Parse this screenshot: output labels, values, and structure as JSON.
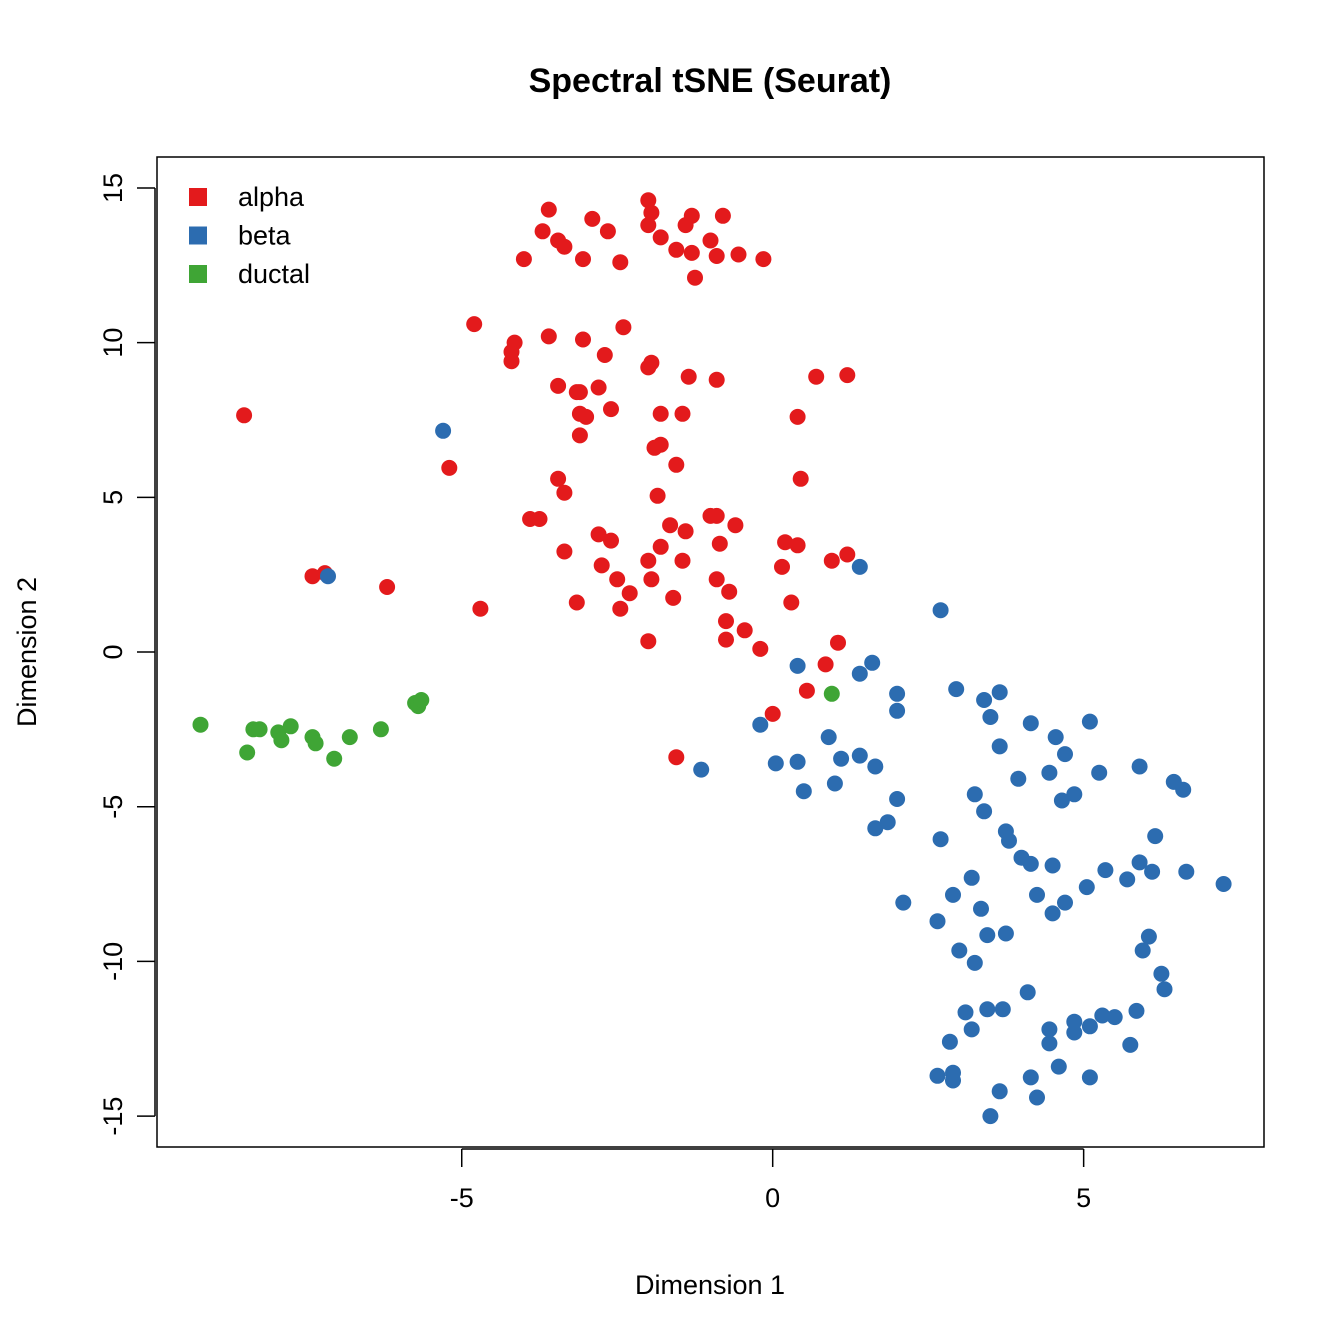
{
  "chart_data": {
    "type": "scatter",
    "title": "Spectral tSNE (Seurat)",
    "xlabel": "Dimension 1",
    "ylabel": "Dimension 2",
    "xlim": [
      -9.9,
      7.9
    ],
    "ylim": [
      -16.0,
      16.0
    ],
    "x_ticks": [
      -5,
      0,
      5
    ],
    "x_tick_labels": [
      "-5",
      "0",
      "5"
    ],
    "y_ticks": [
      -15,
      -10,
      -5,
      0,
      5,
      10,
      15
    ],
    "y_tick_labels": [
      "-15",
      "-10",
      "-5",
      "0",
      "5",
      "10",
      "15"
    ],
    "grid": false,
    "legend_position": "top-left",
    "series": [
      {
        "name": "alpha",
        "color": "#e31a1c",
        "points": [
          [
            -2.0,
            14.6
          ],
          [
            -1.95,
            14.2
          ],
          [
            -2.0,
            13.8
          ],
          [
            -1.3,
            14.1
          ],
          [
            -1.4,
            13.8
          ],
          [
            -0.8,
            14.1
          ],
          [
            -3.6,
            14.3
          ],
          [
            -2.9,
            14.0
          ],
          [
            -2.65,
            13.6
          ],
          [
            -3.7,
            13.6
          ],
          [
            -3.45,
            13.3
          ],
          [
            -3.35,
            13.1
          ],
          [
            -1.8,
            13.4
          ],
          [
            -1.55,
            13.0
          ],
          [
            -1.3,
            12.9
          ],
          [
            -1.0,
            13.3
          ],
          [
            -0.9,
            12.8
          ],
          [
            -0.55,
            12.85
          ],
          [
            -0.15,
            12.7
          ],
          [
            -1.25,
            12.1
          ],
          [
            -4.0,
            12.7
          ],
          [
            -3.05,
            12.7
          ],
          [
            -2.45,
            12.6
          ],
          [
            -4.8,
            10.6
          ],
          [
            -4.15,
            10.0
          ],
          [
            -4.2,
            9.7
          ],
          [
            -4.2,
            9.4
          ],
          [
            -3.6,
            10.2
          ],
          [
            -3.05,
            10.1
          ],
          [
            -2.4,
            10.5
          ],
          [
            -2.7,
            9.6
          ],
          [
            -2.0,
            9.2
          ],
          [
            -1.95,
            9.35
          ],
          [
            -1.35,
            8.9
          ],
          [
            -0.9,
            8.8
          ],
          [
            -3.45,
            8.6
          ],
          [
            -3.15,
            8.4
          ],
          [
            -3.1,
            8.4
          ],
          [
            -2.8,
            8.55
          ],
          [
            -2.6,
            7.85
          ],
          [
            -3.1,
            7.7
          ],
          [
            -3.0,
            7.6
          ],
          [
            -3.1,
            7.0
          ],
          [
            -1.8,
            7.7
          ],
          [
            -1.45,
            7.7
          ],
          [
            -1.8,
            6.7
          ],
          [
            -1.9,
            6.6
          ],
          [
            -1.55,
            6.05
          ],
          [
            0.7,
            8.9
          ],
          [
            1.2,
            8.95
          ],
          [
            0.4,
            7.6
          ],
          [
            0.45,
            5.6
          ],
          [
            -8.5,
            7.65
          ],
          [
            -5.2,
            5.95
          ],
          [
            -3.45,
            5.6
          ],
          [
            -3.35,
            5.15
          ],
          [
            -1.85,
            5.05
          ],
          [
            -3.9,
            4.3
          ],
          [
            -3.75,
            4.3
          ],
          [
            -1.65,
            4.1
          ],
          [
            -1.4,
            3.9
          ],
          [
            -1.0,
            4.4
          ],
          [
            -0.9,
            4.4
          ],
          [
            -0.6,
            4.1
          ],
          [
            -2.8,
            3.8
          ],
          [
            -2.6,
            3.6
          ],
          [
            -3.35,
            3.25
          ],
          [
            -1.8,
            3.4
          ],
          [
            -0.85,
            3.5
          ],
          [
            0.2,
            3.55
          ],
          [
            0.4,
            3.45
          ],
          [
            -2.0,
            2.95
          ],
          [
            -1.45,
            2.95
          ],
          [
            -2.75,
            2.8
          ],
          [
            -2.5,
            2.35
          ],
          [
            -1.95,
            2.35
          ],
          [
            -0.9,
            2.35
          ],
          [
            0.15,
            2.75
          ],
          [
            0.95,
            2.95
          ],
          [
            1.2,
            3.15
          ],
          [
            -2.3,
            1.9
          ],
          [
            -0.7,
            1.95
          ],
          [
            -3.15,
            1.6
          ],
          [
            -2.45,
            1.4
          ],
          [
            -1.6,
            1.75
          ],
          [
            0.3,
            1.6
          ],
          [
            -0.75,
            1.0
          ],
          [
            -0.45,
            0.7
          ],
          [
            -0.75,
            0.4
          ],
          [
            -0.2,
            0.1
          ],
          [
            -2.0,
            0.35
          ],
          [
            1.05,
            0.3
          ],
          [
            0.85,
            -0.4
          ],
          [
            0.55,
            -1.25
          ],
          [
            0.0,
            -2.0
          ],
          [
            -1.55,
            -3.4
          ],
          [
            -7.4,
            2.45
          ],
          [
            -7.2,
            2.55
          ],
          [
            -6.2,
            2.1
          ],
          [
            -4.7,
            1.4
          ]
        ]
      },
      {
        "name": "beta",
        "color": "#2c6cb0",
        "points": [
          [
            -5.3,
            7.15
          ],
          [
            -7.15,
            2.45
          ],
          [
            1.4,
            2.75
          ],
          [
            2.7,
            1.35
          ],
          [
            0.4,
            -0.45
          ],
          [
            1.6,
            -0.35
          ],
          [
            1.4,
            -0.7
          ],
          [
            2.0,
            -1.35
          ],
          [
            2.95,
            -1.2
          ],
          [
            3.4,
            -1.55
          ],
          [
            3.65,
            -1.3
          ],
          [
            2.0,
            -1.9
          ],
          [
            3.5,
            -2.1
          ],
          [
            -0.2,
            -2.35
          ],
          [
            4.15,
            -2.3
          ],
          [
            5.1,
            -2.25
          ],
          [
            0.9,
            -2.75
          ],
          [
            4.55,
            -2.75
          ],
          [
            3.65,
            -3.05
          ],
          [
            4.7,
            -3.3
          ],
          [
            0.05,
            -3.6
          ],
          [
            0.4,
            -3.55
          ],
          [
            1.1,
            -3.45
          ],
          [
            1.4,
            -3.35
          ],
          [
            1.65,
            -3.7
          ],
          [
            -1.15,
            -3.8
          ],
          [
            4.45,
            -3.9
          ],
          [
            5.25,
            -3.9
          ],
          [
            3.95,
            -4.1
          ],
          [
            5.9,
            -3.7
          ],
          [
            6.45,
            -4.2
          ],
          [
            6.6,
            -4.45
          ],
          [
            0.5,
            -4.5
          ],
          [
            1.0,
            -4.25
          ],
          [
            3.25,
            -4.6
          ],
          [
            4.65,
            -4.8
          ],
          [
            4.85,
            -4.6
          ],
          [
            2.0,
            -4.75
          ],
          [
            3.4,
            -5.15
          ],
          [
            1.65,
            -5.7
          ],
          [
            1.85,
            -5.5
          ],
          [
            3.75,
            -5.8
          ],
          [
            3.8,
            -6.1
          ],
          [
            2.7,
            -6.05
          ],
          [
            6.15,
            -5.95
          ],
          [
            4.0,
            -6.65
          ],
          [
            4.15,
            -6.85
          ],
          [
            4.5,
            -6.9
          ],
          [
            5.35,
            -7.05
          ],
          [
            5.9,
            -6.8
          ],
          [
            6.1,
            -7.1
          ],
          [
            6.65,
            -7.1
          ],
          [
            3.2,
            -7.3
          ],
          [
            5.7,
            -7.35
          ],
          [
            7.25,
            -7.5
          ],
          [
            4.25,
            -7.85
          ],
          [
            2.9,
            -7.85
          ],
          [
            5.05,
            -7.6
          ],
          [
            2.1,
            -8.1
          ],
          [
            3.35,
            -8.3
          ],
          [
            4.7,
            -8.1
          ],
          [
            4.5,
            -8.45
          ],
          [
            2.65,
            -8.7
          ],
          [
            3.45,
            -9.15
          ],
          [
            3.75,
            -9.1
          ],
          [
            6.05,
            -9.2
          ],
          [
            3.0,
            -9.65
          ],
          [
            5.95,
            -9.65
          ],
          [
            3.25,
            -10.05
          ],
          [
            6.25,
            -10.4
          ],
          [
            6.3,
            -10.9
          ],
          [
            4.1,
            -11.0
          ],
          [
            3.1,
            -11.65
          ],
          [
            3.45,
            -11.55
          ],
          [
            3.7,
            -11.55
          ],
          [
            5.3,
            -11.75
          ],
          [
            5.5,
            -11.8
          ],
          [
            5.85,
            -11.6
          ],
          [
            4.85,
            -11.95
          ],
          [
            4.45,
            -12.2
          ],
          [
            4.85,
            -12.3
          ],
          [
            5.1,
            -12.1
          ],
          [
            3.2,
            -12.2
          ],
          [
            2.85,
            -12.6
          ],
          [
            4.45,
            -12.65
          ],
          [
            5.75,
            -12.7
          ],
          [
            4.6,
            -13.4
          ],
          [
            2.65,
            -13.7
          ],
          [
            2.9,
            -13.6
          ],
          [
            2.9,
            -13.85
          ],
          [
            4.15,
            -13.75
          ],
          [
            5.1,
            -13.75
          ],
          [
            3.65,
            -14.2
          ],
          [
            4.25,
            -14.4
          ],
          [
            3.5,
            -15.0
          ]
        ]
      },
      {
        "name": "ductal",
        "color": "#3fa535",
        "points": [
          [
            -9.2,
            -2.35
          ],
          [
            -8.35,
            -2.5
          ],
          [
            -8.25,
            -2.5
          ],
          [
            -8.45,
            -3.25
          ],
          [
            -7.95,
            -2.6
          ],
          [
            -7.9,
            -2.85
          ],
          [
            -7.75,
            -2.4
          ],
          [
            -7.4,
            -2.75
          ],
          [
            -7.35,
            -2.95
          ],
          [
            -7.05,
            -3.45
          ],
          [
            -6.8,
            -2.75
          ],
          [
            -6.3,
            -2.5
          ],
          [
            -5.75,
            -1.65
          ],
          [
            -5.7,
            -1.75
          ],
          [
            -5.65,
            -1.55
          ],
          [
            0.95,
            -1.35
          ]
        ]
      }
    ]
  }
}
